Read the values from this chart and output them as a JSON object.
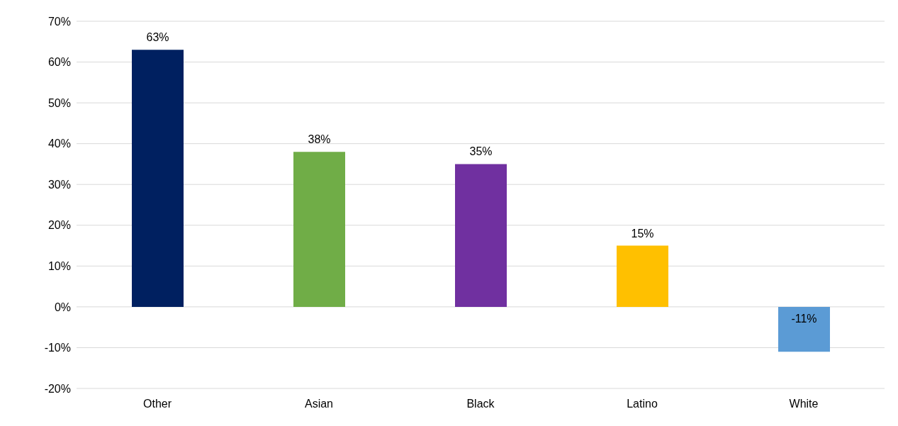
{
  "chart_data": {
    "type": "bar",
    "categories": [
      "Other",
      "Asian",
      "Black",
      "Latino",
      "White"
    ],
    "values": [
      63,
      38,
      35,
      15,
      -11
    ],
    "colors": [
      "#002060",
      "#70ad47",
      "#7030a0",
      "#ffc000",
      "#5b9bd5"
    ],
    "value_labels": [
      "63%",
      "38%",
      "35%",
      "15%",
      "-11%"
    ],
    "ylim": [
      -20,
      70
    ],
    "yticks": [
      {
        "value": -20,
        "label": "-20%"
      },
      {
        "value": -10,
        "label": "-10%"
      },
      {
        "value": 0,
        "label": "0%"
      },
      {
        "value": 10,
        "label": "10%"
      },
      {
        "value": 20,
        "label": "20%"
      },
      {
        "value": 30,
        "label": "30%"
      },
      {
        "value": 40,
        "label": "40%"
      },
      {
        "value": 50,
        "label": "50%"
      },
      {
        "value": 60,
        "label": "60%"
      },
      {
        "value": 70,
        "label": "70%"
      }
    ],
    "grid": "y"
  }
}
